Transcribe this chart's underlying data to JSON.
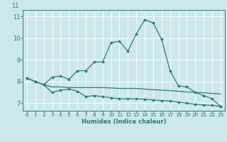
{
  "xlabel": "Humidex (Indice chaleur)",
  "xlim": [
    -0.5,
    23.5
  ],
  "ylim": [
    6.65,
    11.3
  ],
  "xticks": [
    0,
    1,
    2,
    3,
    4,
    5,
    6,
    7,
    8,
    9,
    10,
    11,
    12,
    13,
    14,
    15,
    16,
    17,
    18,
    19,
    20,
    21,
    22,
    23
  ],
  "yticks": [
    7,
    8,
    9,
    10,
    11
  ],
  "background_color": "#cce8ed",
  "line_color": "#2b7b78",
  "grid_color": "#ffffff",
  "line1_x": [
    0,
    1,
    2,
    3,
    4,
    5,
    6,
    7,
    8,
    9,
    10,
    11,
    12,
    13,
    14,
    15,
    16,
    17,
    18,
    19,
    20,
    21,
    22,
    23
  ],
  "line1_y": [
    8.15,
    8.0,
    7.85,
    8.2,
    8.25,
    8.1,
    8.5,
    8.5,
    8.9,
    8.9,
    9.8,
    9.85,
    9.4,
    10.2,
    10.85,
    10.7,
    9.95,
    8.5,
    7.8,
    7.75,
    7.5,
    7.35,
    7.2,
    6.85
  ],
  "line1_has_markers": true,
  "line2_x": [
    0,
    1,
    2,
    3,
    4,
    5,
    6,
    7,
    8,
    9,
    10,
    11,
    12,
    13,
    14,
    15,
    16,
    17,
    18,
    19,
    20,
    21,
    22,
    23
  ],
  "line2_y": [
    8.15,
    8.0,
    7.85,
    7.5,
    7.6,
    7.65,
    7.55,
    7.3,
    7.35,
    7.3,
    7.25,
    7.2,
    7.2,
    7.2,
    7.18,
    7.15,
    7.12,
    7.1,
    7.05,
    7.0,
    6.95,
    6.92,
    6.9,
    6.85
  ],
  "line2_has_markers": true,
  "line3_x": [
    0,
    1,
    2,
    3,
    4,
    5,
    6,
    7,
    8,
    9,
    10,
    11,
    12,
    13,
    14,
    15,
    16,
    17,
    18,
    19,
    20,
    21,
    22,
    23
  ],
  "line3_y": [
    8.15,
    8.0,
    7.85,
    7.75,
    7.75,
    7.72,
    7.72,
    7.72,
    7.72,
    7.72,
    7.7,
    7.68,
    7.68,
    7.68,
    7.65,
    7.62,
    7.6,
    7.58,
    7.55,
    7.52,
    7.5,
    7.48,
    7.45,
    7.42
  ],
  "line3_has_markers": false
}
